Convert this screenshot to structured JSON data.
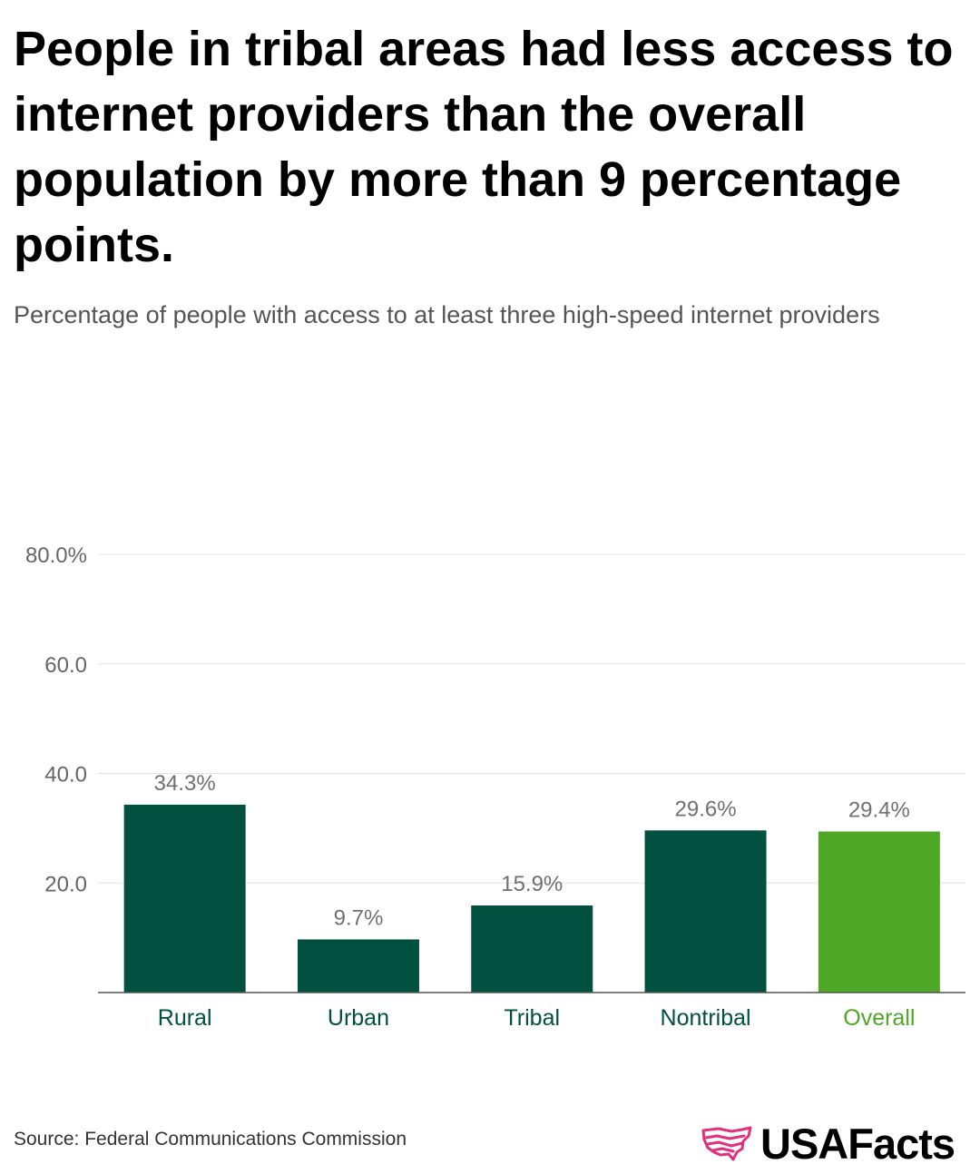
{
  "header": {
    "title": "People in tribal areas had less access to internet providers than the overall population by more than 9 percentage points.",
    "subtitle": "Percentage of people with access to at least three high-speed internet providers"
  },
  "footer": {
    "source": "Source: Federal Communications Commission",
    "brand": "USAFacts"
  },
  "colors": {
    "dark_green": "#02503f",
    "light_green": "#4ea826",
    "brand_pink": "#e2317c"
  },
  "chart_data": {
    "type": "bar",
    "title": "People in tribal areas had less access to internet providers than the overall population by more than 9 percentage points.",
    "subtitle": "Percentage of people with access to at least three high-speed internet providers",
    "categories": [
      "Rural",
      "Urban",
      "Tribal",
      "Nontribal",
      "Overall"
    ],
    "values": [
      34.3,
      9.7,
      15.9,
      29.6,
      29.4
    ],
    "value_labels": [
      "34.3%",
      "9.7%",
      "15.9%",
      "29.6%",
      "29.4%"
    ],
    "highlight": [
      "dark",
      "dark",
      "dark",
      "dark",
      "light"
    ],
    "ylim": [
      0,
      80
    ],
    "yticks": [
      20,
      40,
      60,
      80
    ],
    "ytick_labels": [
      "20.0",
      "40.0",
      "60.0",
      "80.0%"
    ],
    "grid": true,
    "xlabel": "",
    "ylabel": ""
  }
}
